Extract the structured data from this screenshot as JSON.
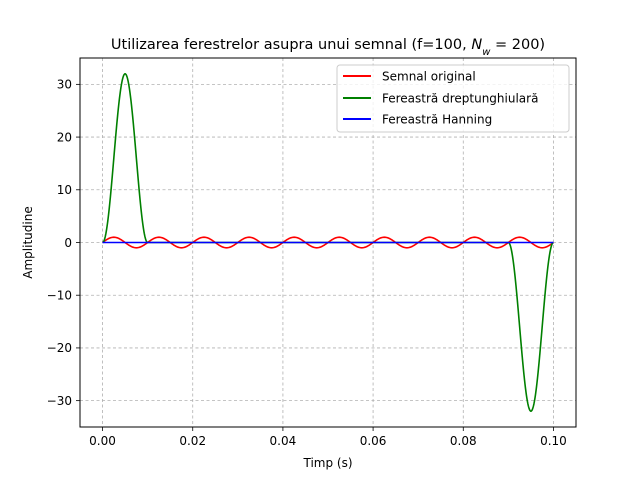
{
  "chart_data": {
    "type": "line",
    "title_main": "Utilizarea ferestrelor asupra unui semnal (f=100, ",
    "title_var": "N",
    "title_sub": "w",
    "title_tail": " = 200)",
    "xlabel": "Timp (s)",
    "ylabel": "Amplitudine",
    "xlim": [
      -0.005,
      0.105
    ],
    "ylim": [
      -35,
      35
    ],
    "xticks": [
      0.0,
      0.02,
      0.04,
      0.06,
      0.08,
      0.1
    ],
    "xtick_labels": [
      "0.00",
      "0.02",
      "0.04",
      "0.06",
      "0.08",
      "0.10"
    ],
    "yticks": [
      -30,
      -20,
      -10,
      0,
      10,
      20,
      30
    ],
    "ytick_labels": [
      "−30",
      "−20",
      "−10",
      "0",
      "10",
      "20",
      "30"
    ],
    "grid": true,
    "legend_position": "top-right",
    "series": [
      {
        "name": "Semnal original",
        "color": "#ff0000",
        "x": [
          0.0,
          0.0025,
          0.005,
          0.0075,
          0.01,
          0.0125,
          0.015,
          0.0175,
          0.02,
          0.0225,
          0.025,
          0.0275,
          0.03,
          0.0325,
          0.035,
          0.0375,
          0.04,
          0.0425,
          0.045,
          0.0475,
          0.05,
          0.0525,
          0.055,
          0.0575,
          0.06,
          0.0625,
          0.065,
          0.0675,
          0.07,
          0.0725,
          0.075,
          0.0775,
          0.08,
          0.0825,
          0.085,
          0.0875,
          0.09,
          0.0925,
          0.095,
          0.0975,
          0.1
        ],
        "y": [
          0,
          1,
          0,
          -1,
          0,
          1,
          0,
          -1,
          0,
          1,
          0,
          -1,
          0,
          1,
          0,
          -1,
          0,
          1,
          0,
          -1,
          0,
          1,
          0,
          -1,
          0,
          1,
          0,
          -1,
          0,
          1,
          0,
          -1,
          0,
          1,
          0,
          -1,
          0,
          1,
          0,
          -1,
          0
        ]
      },
      {
        "name": "Fereastră dreptunghiulară",
        "color": "#008000",
        "x": [
          0.0,
          0.0005,
          0.001,
          0.0015,
          0.002,
          0.0025,
          0.003,
          0.0035,
          0.004,
          0.0045,
          0.005,
          0.0055,
          0.006,
          0.0065,
          0.007,
          0.0075,
          0.008,
          0.0085,
          0.009,
          0.0095,
          0.01,
          0.09,
          0.0905,
          0.091,
          0.0915,
          0.092,
          0.0925,
          0.093,
          0.0935,
          0.094,
          0.0945,
          0.095,
          0.0955,
          0.096,
          0.0965,
          0.097,
          0.0975,
          0.098,
          0.0985,
          0.099,
          0.0995,
          0.1
        ],
        "y": [
          0,
          0.78,
          3.04,
          6.58,
          11.08,
          16.0,
          20.92,
          25.42,
          28.96,
          31.22,
          32.0,
          31.22,
          28.96,
          25.42,
          20.92,
          16.0,
          11.08,
          6.58,
          3.04,
          0.78,
          0,
          0,
          -0.78,
          -3.04,
          -6.58,
          -11.08,
          -16.0,
          -20.92,
          -25.42,
          -28.96,
          -31.22,
          -32.0,
          -31.22,
          -28.96,
          -25.42,
          -20.92,
          -16.0,
          -11.08,
          -6.58,
          -3.04,
          -0.78,
          0
        ]
      },
      {
        "name": "Fereastră Hanning",
        "color": "#0000ff",
        "x": [
          0.0,
          0.1
        ],
        "y": [
          0,
          0
        ]
      }
    ]
  }
}
